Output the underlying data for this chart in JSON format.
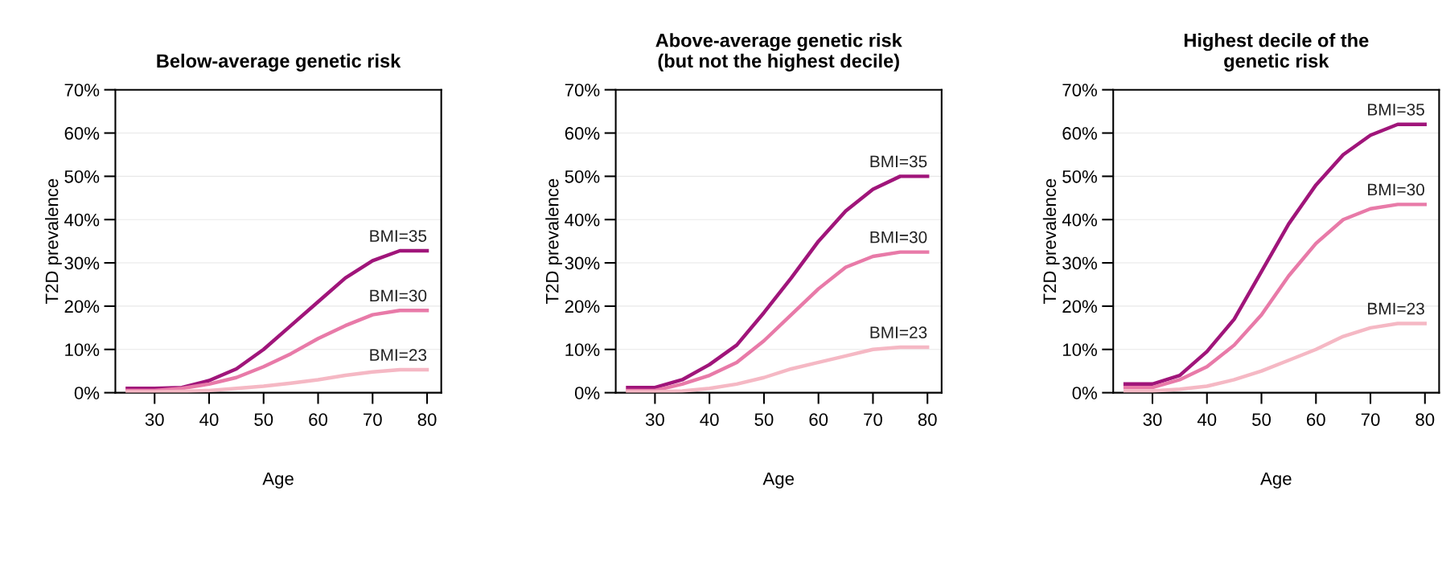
{
  "chart_data": [
    {
      "type": "line",
      "title": "Below-average genetic risk",
      "xlabel": "Age",
      "ylabel": "T2D prevalence",
      "x": [
        25,
        30,
        35,
        40,
        45,
        50,
        55,
        60,
        65,
        70,
        75,
        80
      ],
      "xlim": [
        22.8,
        82.6
      ],
      "xticks": [
        30,
        40,
        50,
        60,
        70,
        80
      ],
      "ylim": [
        0,
        70
      ],
      "yticks": [
        {
          "value": 0,
          "label": "0%"
        },
        {
          "value": 10,
          "label": "10%"
        },
        {
          "value": 20,
          "label": "20%"
        },
        {
          "value": 30,
          "label": "30%"
        },
        {
          "value": 40,
          "label": "40%"
        },
        {
          "value": 50,
          "label": "50%"
        },
        {
          "value": 60,
          "label": "60%"
        },
        {
          "value": 70,
          "label": "70%"
        }
      ],
      "grid": "y",
      "legend": false,
      "series": [
        {
          "name": "BMI=35",
          "color": "#a0157a",
          "values": [
            1,
            1,
            1.2,
            2.8,
            5.5,
            10,
            15.5,
            21,
            26.5,
            30.5,
            32.8,
            32.8
          ]
        },
        {
          "name": "BMI=30",
          "color": "#e87aa8",
          "values": [
            0.5,
            0.5,
            1,
            2,
            3.5,
            6,
            9,
            12.5,
            15.5,
            18,
            19,
            19
          ]
        },
        {
          "name": "BMI=23",
          "color": "#f5b8c4",
          "values": [
            0.2,
            0.2,
            0.3,
            0.5,
            1,
            1.5,
            2.2,
            3,
            4,
            4.8,
            5.3,
            5.3
          ]
        }
      ]
    },
    {
      "type": "line",
      "title": "Above-average genetic risk\n(but not the highest decile)",
      "xlabel": "Age",
      "ylabel": "T2D prevalence",
      "x": [
        25,
        30,
        35,
        40,
        45,
        50,
        55,
        60,
        65,
        70,
        75,
        80
      ],
      "xlim": [
        22.8,
        82.6
      ],
      "xticks": [
        30,
        40,
        50,
        60,
        70,
        80
      ],
      "ylim": [
        0,
        70
      ],
      "yticks": [
        {
          "value": 0,
          "label": "0%"
        },
        {
          "value": 10,
          "label": "10%"
        },
        {
          "value": 20,
          "label": "20%"
        },
        {
          "value": 30,
          "label": "30%"
        },
        {
          "value": 40,
          "label": "40%"
        },
        {
          "value": 50,
          "label": "50%"
        },
        {
          "value": 60,
          "label": "60%"
        },
        {
          "value": 70,
          "label": "70%"
        }
      ],
      "grid": "y",
      "legend": false,
      "series": [
        {
          "name": "BMI=35",
          "color": "#a0157a",
          "values": [
            1.2,
            1.2,
            3,
            6.5,
            11,
            18.5,
            26.5,
            35,
            42,
            47,
            50,
            50
          ]
        },
        {
          "name": "BMI=30",
          "color": "#e87aa8",
          "values": [
            0.5,
            0.5,
            2,
            4,
            7,
            12,
            18,
            24,
            29,
            31.5,
            32.5,
            32.5
          ]
        },
        {
          "name": "BMI=23",
          "color": "#f5b8c4",
          "values": [
            0.2,
            0.2,
            0.4,
            1,
            2,
            3.5,
            5.5,
            7,
            8.5,
            10,
            10.5,
            10.5
          ]
        }
      ]
    },
    {
      "type": "line",
      "title": "Highest decile of the\ngenetic risk",
      "xlabel": "Age",
      "ylabel": "T2D prevalence",
      "x": [
        25,
        30,
        35,
        40,
        45,
        50,
        55,
        60,
        65,
        70,
        75,
        80
      ],
      "xlim": [
        22.8,
        82.6
      ],
      "xticks": [
        30,
        40,
        50,
        60,
        70,
        80
      ],
      "ylim": [
        0,
        70
      ],
      "yticks": [
        {
          "value": 0,
          "label": "0%"
        },
        {
          "value": 10,
          "label": "10%"
        },
        {
          "value": 20,
          "label": "20%"
        },
        {
          "value": 30,
          "label": "30%"
        },
        {
          "value": 40,
          "label": "40%"
        },
        {
          "value": 50,
          "label": "50%"
        },
        {
          "value": 60,
          "label": "60%"
        },
        {
          "value": 70,
          "label": "70%"
        }
      ],
      "grid": "y",
      "legend": false,
      "series": [
        {
          "name": "BMI=35",
          "color": "#a0157a",
          "values": [
            2,
            2,
            4,
            9.5,
            17,
            28,
            39,
            48,
            55,
            59.5,
            62,
            62
          ]
        },
        {
          "name": "BMI=30",
          "color": "#e87aa8",
          "values": [
            1.2,
            1.2,
            3,
            6,
            11,
            18,
            27,
            34.5,
            40,
            42.5,
            43.5,
            43.5
          ]
        },
        {
          "name": "BMI=23",
          "color": "#f5b8c4",
          "values": [
            0.4,
            0.4,
            0.8,
            1.5,
            3,
            5,
            7.5,
            10,
            13,
            15,
            16,
            16
          ]
        }
      ]
    }
  ]
}
